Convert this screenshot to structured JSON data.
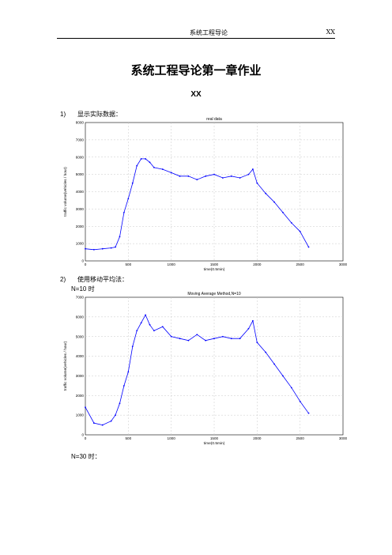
{
  "header": {
    "center": "系统工程导论",
    "right": "XX"
  },
  "title": "系统工程导论第一章作业",
  "author": "XX",
  "sections": [
    {
      "num": "1)",
      "text": "显示实际数据："
    },
    {
      "num": "2)",
      "text": "使用移动平均法："
    }
  ],
  "subs": {
    "n10": "N=10 时",
    "n30": "N=30 时："
  },
  "chart_data": [
    {
      "type": "line",
      "title": "real data",
      "xlabel": "time(0.5min)",
      "ylabel": "traffic volume(vehicles / hour)",
      "xlim": [
        0,
        3000
      ],
      "ylim": [
        0,
        8000
      ],
      "xticks": [
        0,
        500,
        1000,
        1500,
        2000,
        2500,
        3000
      ],
      "yticks": [
        0,
        1000,
        2000,
        3000,
        4000,
        5000,
        6000,
        7000,
        8000
      ],
      "grid": true,
      "color": "#0000ff",
      "series": [
        {
          "x": [
            0,
            100,
            200,
            300,
            350,
            400,
            450,
            500,
            550,
            600,
            650,
            700,
            750,
            800,
            900,
            1000,
            1100,
            1200,
            1300,
            1400,
            1500,
            1600,
            1700,
            1800,
            1900,
            1950,
            2000,
            2100,
            2200,
            2300,
            2400,
            2500,
            2600
          ],
          "y": [
            700,
            650,
            700,
            750,
            800,
            1400,
            2800,
            3600,
            4500,
            5500,
            5900,
            5900,
            5700,
            5400,
            5300,
            5100,
            4900,
            4900,
            4700,
            4900,
            5000,
            4800,
            4900,
            4800,
            5000,
            5300,
            4500,
            3900,
            3400,
            2800,
            2200,
            1700,
            800
          ]
        }
      ]
    },
    {
      "type": "line",
      "title": "Moving Average Method,N=10",
      "xlabel": "time(0.5min)",
      "ylabel": "traffic volume(vehicles / hour)",
      "xlim": [
        0,
        3000
      ],
      "ylim": [
        0,
        7000
      ],
      "xticks": [
        0,
        500,
        1000,
        1500,
        2000,
        2500,
        3000
      ],
      "yticks": [
        0,
        1000,
        2000,
        3000,
        4000,
        5000,
        6000,
        7000
      ],
      "grid": true,
      "color": "#0000ff",
      "series": [
        {
          "x": [
            0,
            100,
            200,
            300,
            350,
            400,
            450,
            500,
            550,
            600,
            650,
            700,
            750,
            800,
            900,
            1000,
            1100,
            1200,
            1300,
            1400,
            1500,
            1600,
            1700,
            1800,
            1900,
            1950,
            2000,
            2100,
            2200,
            2300,
            2400,
            2500,
            2600
          ],
          "y": [
            1400,
            600,
            500,
            700,
            1000,
            1600,
            2500,
            3200,
            4500,
            5300,
            5700,
            6100,
            5600,
            5300,
            5500,
            5000,
            4900,
            4800,
            5100,
            4800,
            4900,
            5000,
            4900,
            4900,
            5400,
            5800,
            4700,
            4200,
            3600,
            3000,
            2400,
            1700,
            1100
          ]
        }
      ]
    }
  ]
}
